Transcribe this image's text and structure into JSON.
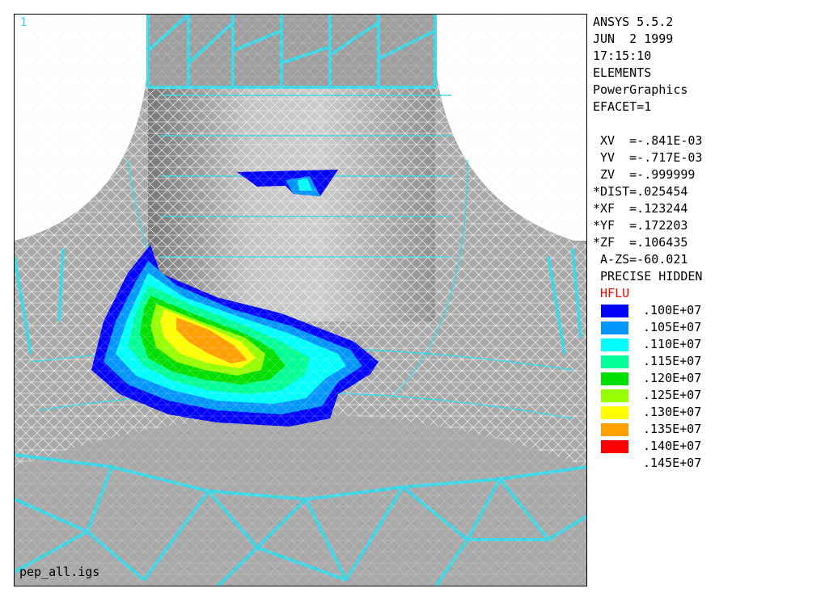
{
  "viewport": {
    "window_number": "1",
    "filename": "pep_all.igs"
  },
  "info": {
    "lines_top": [
      "ANSYS 5.5.2",
      "JUN  2 1999",
      "17:15:10",
      "ELEMENTS",
      "PowerGraphics",
      "EFACET=1"
    ],
    "lines_view": [
      " XV  =-.841E-03",
      " YV  =-.717E-03",
      " ZV  =-.999999",
      "*DIST=.025454",
      "*XF  =.123244",
      "*YF  =.172203",
      "*ZF  =.106435",
      " A-ZS=-60.021",
      " PRECISE HIDDEN"
    ],
    "result_label": " HFLU"
  },
  "legend": [
    {
      "value": ".100E+07",
      "color": "#0000ff"
    },
    {
      "value": ".105E+07",
      "color": "#0096ff"
    },
    {
      "value": ".110E+07",
      "color": "#00ffff"
    },
    {
      "value": ".115E+07",
      "color": "#00ff96"
    },
    {
      "value": ".120E+07",
      "color": "#00e000"
    },
    {
      "value": ".125E+07",
      "color": "#96ff00"
    },
    {
      "value": ".130E+07",
      "color": "#ffff00"
    },
    {
      "value": ".135E+07",
      "color": "#ffa000"
    },
    {
      "value": ".140E+07",
      "color": "#ff0000"
    }
  ],
  "legend_extra": [
    ".145E+07"
  ],
  "colors": {
    "mesh_cyan": "#3ad6e6",
    "surface_dark": "#7a7a7a",
    "surface_light": "#b4b4b4"
  }
}
